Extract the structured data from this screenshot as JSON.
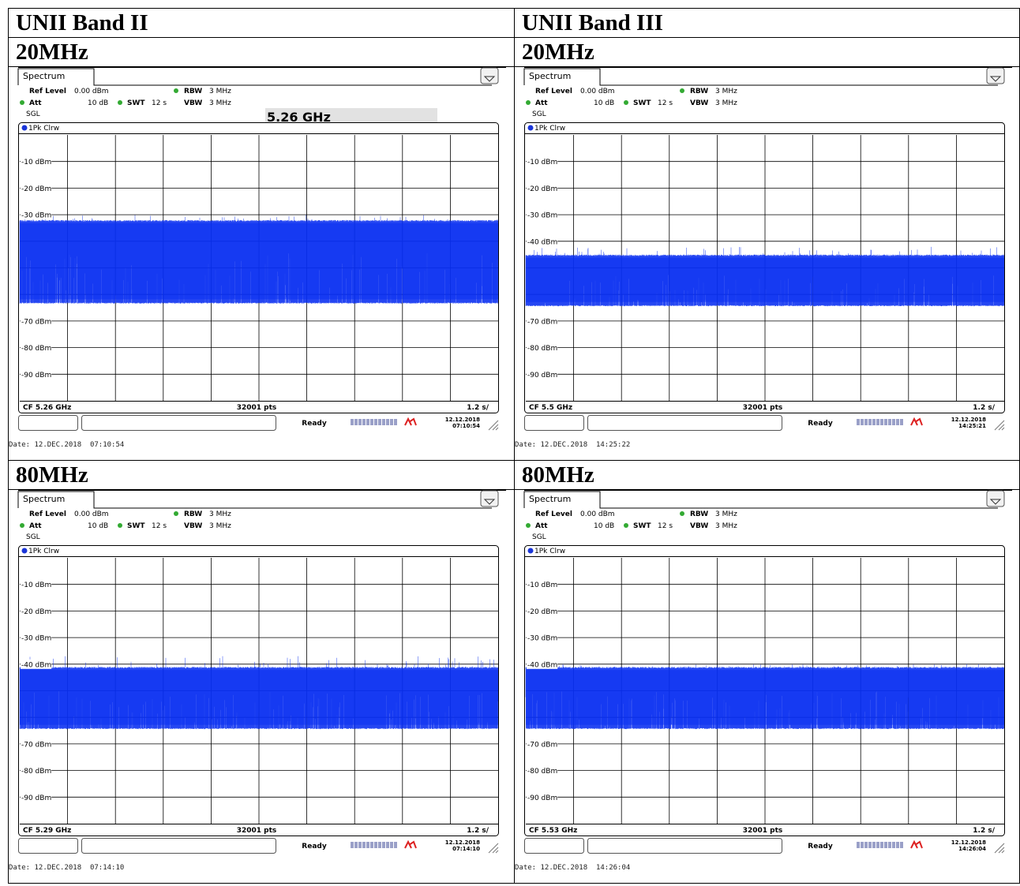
{
  "table": {
    "columns": [
      "UNII Band II",
      "UNII Band III"
    ],
    "row_labels": [
      "20MHz",
      "80MHz"
    ]
  },
  "colors": {
    "trace": "#0a2ff0",
    "grid": "#000000",
    "background": "#ffffff"
  },
  "panels": [
    {
      "id": "b2-20",
      "tab": "Spectrum",
      "ref_level_label": "Ref Level",
      "ref_level": "0.00 dBm",
      "att_label": "Att",
      "att": "10 dB",
      "swt_label": "SWT",
      "swt": "12 s",
      "rbw_label": "RBW",
      "rbw": "3 MHz",
      "vbw_label": "VBW",
      "vbw": "3 MHz",
      "mode": "SGL",
      "marker_freq": "5.26 GHz",
      "trace": "1Pk Clrw",
      "cf": "CF 5.26 GHz",
      "pts": "32001 pts",
      "sweep": "1.2 s/",
      "status": "Ready",
      "clock_date": "12.12.2018",
      "clock_time": "07:10:54",
      "date_line": "Date: 12.DEC.2018  07:10:54",
      "chart_data": {
        "type": "line",
        "y_unit": "dBm",
        "ylim": [
          -100,
          0
        ],
        "y_tick_labels": [
          "-10 dBm",
          "-20 dBm",
          "-30 dBm",
          "",
          "",
          "",
          "-70 dBm",
          "-80 dBm",
          "-90 dBm"
        ],
        "trace_band": {
          "top": -32,
          "bottom": -63,
          "peak": -30
        },
        "grid": true
      }
    },
    {
      "id": "b3-20",
      "tab": "Spectrum",
      "ref_level_label": "Ref Level",
      "ref_level": "0.00 dBm",
      "att_label": "Att",
      "att": "10 dB",
      "swt_label": "SWT",
      "swt": "12 s",
      "rbw_label": "RBW",
      "rbw": "3 MHz",
      "vbw_label": "VBW",
      "vbw": "3 MHz",
      "mode": "SGL",
      "marker_freq": "",
      "trace": "1Pk Clrw",
      "cf": "CF 5.5 GHz",
      "pts": "32001 pts",
      "sweep": "1.2 s/",
      "status": "Ready",
      "clock_date": "12.12.2018",
      "clock_time": "14:25:21",
      "date_line": "Date: 12.DEC.2018  14:25:22",
      "chart_data": {
        "type": "line",
        "y_unit": "dBm",
        "ylim": [
          -100,
          0
        ],
        "y_tick_labels": [
          "-10 dBm",
          "-20 dBm",
          "-30 dBm",
          "-40 dBm",
          "",
          "",
          "-70 dBm",
          "-80 dBm",
          "-90 dBm"
        ],
        "trace_band": {
          "top": -45,
          "bottom": -64,
          "peak": -42
        },
        "grid": true
      }
    },
    {
      "id": "b2-80",
      "tab": "Spectrum",
      "ref_level_label": "Ref Level",
      "ref_level": "0.00 dBm",
      "att_label": "Att",
      "att": "10 dB",
      "swt_label": "SWT",
      "swt": "12 s",
      "rbw_label": "RBW",
      "rbw": "3 MHz",
      "vbw_label": "VBW",
      "vbw": "3 MHz",
      "mode": "SGL",
      "marker_freq": "",
      "trace": "1Pk Clrw",
      "cf": "CF 5.29 GHz",
      "pts": "32001 pts",
      "sweep": "1.2 s/",
      "status": "Ready",
      "clock_date": "12.12.2018",
      "clock_time": "07:14:10",
      "date_line": "Date: 12.DEC.2018  07:14:10",
      "chart_data": {
        "type": "line",
        "y_unit": "dBm",
        "ylim": [
          -100,
          0
        ],
        "y_tick_labels": [
          "-10 dBm",
          "-20 dBm",
          "-30 dBm",
          "-40 dBm",
          "",
          "",
          "-70 dBm",
          "-80 dBm",
          "-90 dBm"
        ],
        "trace_band": {
          "top": -41,
          "bottom": -64,
          "peak": -37
        },
        "grid": true
      }
    },
    {
      "id": "b3-80",
      "tab": "Spectrum",
      "ref_level_label": "Ref Level",
      "ref_level": "0.00 dBm",
      "att_label": "Att",
      "att": "10 dB",
      "swt_label": "SWT",
      "swt": "12 s",
      "rbw_label": "RBW",
      "rbw": "3 MHz",
      "vbw_label": "VBW",
      "vbw": "3 MHz",
      "mode": "SGL",
      "marker_freq": "",
      "trace": "1Pk Clrw",
      "cf": "CF 5.53 GHz",
      "pts": "32001 pts",
      "sweep": "1.2 s/",
      "status": "Ready",
      "clock_date": "12.12.2018",
      "clock_time": "14:26:04",
      "date_line": "Date: 12.DEC.2018  14:26:04",
      "chart_data": {
        "type": "line",
        "y_unit": "dBm",
        "ylim": [
          -100,
          0
        ],
        "y_tick_labels": [
          "-10 dBm",
          "-20 dBm",
          "-30 dBm",
          "-40 dBm",
          "",
          "",
          "-70 dBm",
          "-80 dBm",
          "-90 dBm"
        ],
        "trace_band": {
          "top": -41,
          "bottom": -64,
          "peak": -40
        },
        "grid": true
      }
    }
  ]
}
